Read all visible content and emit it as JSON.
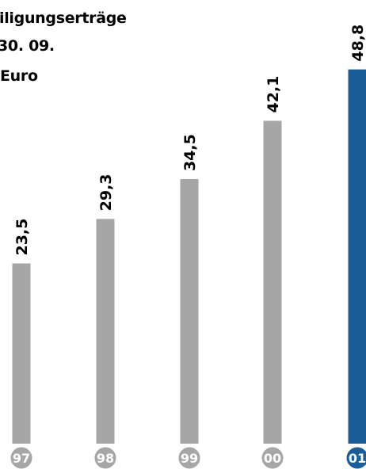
{
  "title_lines": [
    "iligungserträge",
    "30. 09.",
    "Euro"
  ],
  "colors": {
    "bar": "#a6a6a6",
    "highlight": "#1a5d99",
    "text": "#000000",
    "badge_text": "#ffffff"
  },
  "chart_data": {
    "type": "bar",
    "categories": [
      "97",
      "98",
      "99",
      "00",
      "01"
    ],
    "values": [
      23.5,
      29.3,
      34.5,
      42.1,
      48.8
    ],
    "value_labels": [
      "23,5",
      "29,3",
      "34,5",
      "42,1",
      "48,8"
    ],
    "highlight_index": 4,
    "ylim": [
      0,
      50
    ]
  }
}
